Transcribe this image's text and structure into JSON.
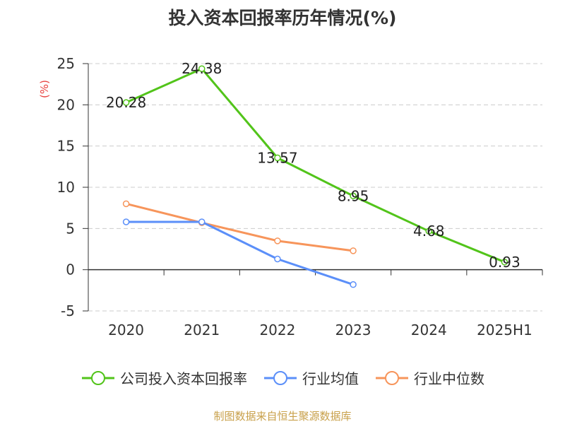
{
  "title": "投入资本回报率历年情况(%)",
  "source": "制图数据来自恒生聚源数据库",
  "colors": {
    "company": "#52c41a",
    "industry_avg": "#5b8ff9",
    "industry_median": "#f7955b",
    "axis": "#333333",
    "grid": "#cccccc",
    "ylabel": "#e8413e"
  },
  "chart_data": {
    "type": "line",
    "title": "投入资本回报率历年情况(%)",
    "xlabel": "",
    "ylabel": "(%)",
    "categories": [
      "2020",
      "2021",
      "2022",
      "2023",
      "2024",
      "2025H1"
    ],
    "ylim": [
      -5,
      25
    ],
    "yticks": [
      -5,
      0,
      5,
      10,
      15,
      20,
      25
    ],
    "grid": true,
    "legend_position": "bottom",
    "series": [
      {
        "name": "公司投入资本回报率",
        "values": [
          20.28,
          24.38,
          13.57,
          8.95,
          4.68,
          0.93
        ],
        "labels": [
          "20.28",
          "24.38",
          "13.57",
          "8.95",
          "4.68",
          "0.93"
        ]
      },
      {
        "name": "行业均值",
        "values": [
          5.8,
          5.8,
          1.3,
          -1.8,
          null,
          null
        ]
      },
      {
        "name": "行业中位数",
        "values": [
          8.0,
          5.7,
          3.5,
          2.3,
          null,
          null
        ]
      }
    ]
  }
}
